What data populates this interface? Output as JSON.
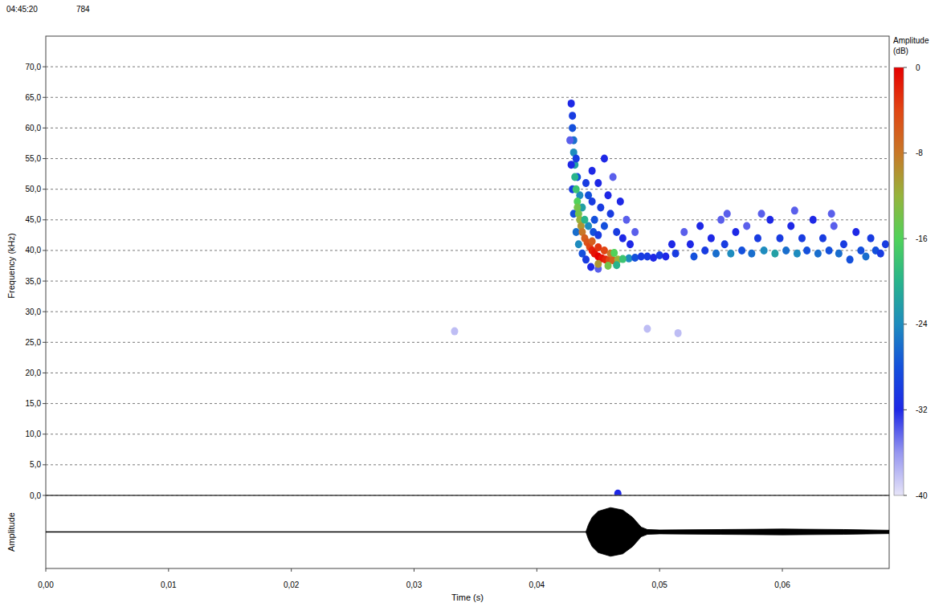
{
  "chart_data": {
    "type": "spectrogram",
    "annotations": [
      "04:45:20",
      "784"
    ],
    "x_label": "Time (s)",
    "y_label": "Frequency (kHz)",
    "xlim": [
      0,
      0.0687
    ],
    "xticks": [
      {
        "value": 0,
        "label": "0,00"
      },
      {
        "value": 0.01,
        "label": "0,01"
      },
      {
        "value": 0.02,
        "label": "0,02"
      },
      {
        "value": 0.03,
        "label": "0,03"
      },
      {
        "value": 0.04,
        "label": "0,04"
      },
      {
        "value": 0.05,
        "label": "0,05"
      },
      {
        "value": 0.06,
        "label": "0,06"
      }
    ],
    "ylim": [
      0,
      75
    ],
    "yticks": [
      {
        "value": 0,
        "label": "0,0"
      },
      {
        "value": 5,
        "label": "5,0"
      },
      {
        "value": 10,
        "label": "10,0"
      },
      {
        "value": 15,
        "label": "15,0"
      },
      {
        "value": 20,
        "label": "20,0"
      },
      {
        "value": 25,
        "label": "25,0"
      },
      {
        "value": 30,
        "label": "30,0"
      },
      {
        "value": 35,
        "label": "35,0"
      },
      {
        "value": 40,
        "label": "40,0"
      },
      {
        "value": 45,
        "label": "45,0"
      },
      {
        "value": 50,
        "label": "50,0"
      },
      {
        "value": 55,
        "label": "55,0"
      },
      {
        "value": 60,
        "label": "60,0"
      },
      {
        "value": 65,
        "label": "65,0"
      },
      {
        "value": 70,
        "label": "70,0"
      }
    ],
    "grid": true,
    "cells": [
      [
        0.0428,
        64,
        -32
      ],
      [
        0.0429,
        62,
        -30
      ],
      [
        0.0429,
        60,
        -28
      ],
      [
        0.043,
        58,
        -26
      ],
      [
        0.043,
        56,
        -24
      ],
      [
        0.0431,
        54,
        -22
      ],
      [
        0.0431,
        52,
        -20
      ],
      [
        0.0432,
        50,
        -18
      ],
      [
        0.0433,
        48,
        -16
      ],
      [
        0.0433,
        47,
        -14
      ],
      [
        0.0434,
        46,
        -14
      ],
      [
        0.0435,
        45,
        -12
      ],
      [
        0.0436,
        44,
        -10
      ],
      [
        0.0437,
        43,
        -8
      ],
      [
        0.0439,
        42,
        -6
      ],
      [
        0.0441,
        41.3,
        -5
      ],
      [
        0.0443,
        40.6,
        -4
      ],
      [
        0.0445,
        40.0,
        -2
      ],
      [
        0.0447,
        39.5,
        -1
      ],
      [
        0.045,
        39.0,
        0
      ],
      [
        0.0453,
        38.7,
        -1
      ],
      [
        0.0456,
        38.5,
        -2
      ],
      [
        0.0459,
        38.4,
        -4
      ],
      [
        0.0462,
        38.4,
        -6
      ],
      [
        0.0466,
        38.5,
        -12
      ],
      [
        0.047,
        38.6,
        -18
      ],
      [
        0.0475,
        38.7,
        -24
      ],
      [
        0.048,
        38.8,
        -28
      ],
      [
        0.0485,
        39,
        -30
      ],
      [
        0.0445,
        41.5,
        -6
      ],
      [
        0.045,
        40.5,
        -3
      ],
      [
        0.0455,
        40,
        -4
      ],
      [
        0.046,
        39.5,
        -8
      ],
      [
        0.045,
        37.8,
        -10
      ],
      [
        0.0458,
        37.5,
        -14
      ],
      [
        0.0465,
        37.6,
        -20
      ],
      [
        0.0463,
        39.6,
        -16
      ],
      [
        0.0427,
        58,
        -34
      ],
      [
        0.0428,
        54,
        -32
      ],
      [
        0.0429,
        50,
        -30
      ],
      [
        0.043,
        46,
        -28
      ],
      [
        0.0432,
        43,
        -26
      ],
      [
        0.0434,
        41,
        -24
      ],
      [
        0.0437,
        39.5,
        -28
      ],
      [
        0.044,
        38.5,
        -30
      ],
      [
        0.0444,
        37.3,
        -32
      ],
      [
        0.045,
        37,
        -34
      ],
      [
        0.0432,
        55,
        -30
      ],
      [
        0.0433,
        52,
        -28
      ],
      [
        0.0435,
        49,
        -24
      ],
      [
        0.0437,
        47,
        -22
      ],
      [
        0.0439,
        45,
        -20
      ],
      [
        0.0442,
        44,
        -24
      ],
      [
        0.0446,
        43,
        -28
      ],
      [
        0.045,
        42.5,
        -30
      ],
      [
        0.044,
        51,
        -30
      ],
      [
        0.0442,
        49,
        -28
      ],
      [
        0.0445,
        53,
        -32
      ],
      [
        0.0445,
        48,
        -30
      ],
      [
        0.0447,
        45,
        -28
      ],
      [
        0.045,
        51,
        -32
      ],
      [
        0.0452,
        47,
        -30
      ],
      [
        0.0455,
        55,
        -32
      ],
      [
        0.0455,
        44,
        -28
      ],
      [
        0.0458,
        49,
        -32
      ],
      [
        0.046,
        46,
        -30
      ],
      [
        0.0462,
        52,
        -34
      ],
      [
        0.0465,
        43,
        -30
      ],
      [
        0.0468,
        48,
        -32
      ],
      [
        0.047,
        42,
        -32
      ],
      [
        0.0473,
        45,
        -34
      ],
      [
        0.0476,
        41,
        -32
      ],
      [
        0.048,
        43,
        -34
      ],
      [
        0.049,
        39,
        -30
      ],
      [
        0.0495,
        38.8,
        -32
      ],
      [
        0.05,
        39.2,
        -30
      ],
      [
        0.0505,
        39,
        -32
      ],
      [
        0.051,
        41,
        -32
      ],
      [
        0.0513,
        39.5,
        -30
      ],
      [
        0.052,
        43,
        -34
      ],
      [
        0.0525,
        41,
        -32
      ],
      [
        0.0528,
        39,
        -28
      ],
      [
        0.0533,
        44,
        -32
      ],
      [
        0.0537,
        40,
        -30
      ],
      [
        0.0542,
        42,
        -32
      ],
      [
        0.0546,
        39.5,
        -26
      ],
      [
        0.055,
        45,
        -34
      ],
      [
        0.0553,
        41,
        -30
      ],
      [
        0.0558,
        39.5,
        -24
      ],
      [
        0.0562,
        43,
        -32
      ],
      [
        0.0567,
        40,
        -28
      ],
      [
        0.0571,
        44,
        -34
      ],
      [
        0.0575,
        39.5,
        -26
      ],
      [
        0.058,
        42,
        -30
      ],
      [
        0.0585,
        40,
        -24
      ],
      [
        0.059,
        45,
        -32
      ],
      [
        0.0594,
        39.5,
        -22
      ],
      [
        0.0598,
        42,
        -30
      ],
      [
        0.0603,
        40,
        -26
      ],
      [
        0.0607,
        44,
        -32
      ],
      [
        0.0612,
        39.5,
        -24
      ],
      [
        0.0616,
        42,
        -30
      ],
      [
        0.062,
        40,
        -28
      ],
      [
        0.0625,
        45,
        -32
      ],
      [
        0.0629,
        39.5,
        -26
      ],
      [
        0.0633,
        42,
        -30
      ],
      [
        0.0638,
        40,
        -28
      ],
      [
        0.0642,
        44,
        -34
      ],
      [
        0.0646,
        39.5,
        -26
      ],
      [
        0.065,
        41,
        -30
      ],
      [
        0.0655,
        38.5,
        -28
      ],
      [
        0.066,
        43,
        -32
      ],
      [
        0.0664,
        40,
        -28
      ],
      [
        0.0668,
        39,
        -26
      ],
      [
        0.0672,
        42,
        -30
      ],
      [
        0.0676,
        40,
        -28
      ],
      [
        0.068,
        39.5,
        -30
      ],
      [
        0.0684,
        41,
        -30
      ],
      [
        0.0555,
        46,
        -34
      ],
      [
        0.0583,
        46,
        -34
      ],
      [
        0.061,
        46.5,
        -34
      ],
      [
        0.064,
        46,
        -34
      ],
      [
        0.0333,
        26.8,
        -38
      ],
      [
        0.049,
        27.2,
        -38
      ],
      [
        0.0515,
        26.5,
        -38
      ],
      [
        0.0466,
        0.3,
        -32
      ]
    ],
    "colorbar": {
      "label": "Amplitude (dB)",
      "range": [
        -40,
        0
      ],
      "ticks": [
        0,
        -8,
        -16,
        -24,
        -32,
        -40
      ]
    },
    "waveform": {
      "label": "Amplitude",
      "ylim": [
        -1.5,
        1.5
      ],
      "x": [
        0,
        0.044,
        0.0442,
        0.0445,
        0.045,
        0.046,
        0.047,
        0.0478,
        0.0485,
        0.049,
        0.05,
        0.055,
        0.06,
        0.065,
        0.0687
      ],
      "values": [
        0.01,
        0.01,
        0.3,
        0.6,
        0.85,
        1.0,
        0.9,
        0.6,
        0.2,
        0.1,
        0.08,
        0.1,
        0.12,
        0.1,
        0.07
      ]
    }
  }
}
